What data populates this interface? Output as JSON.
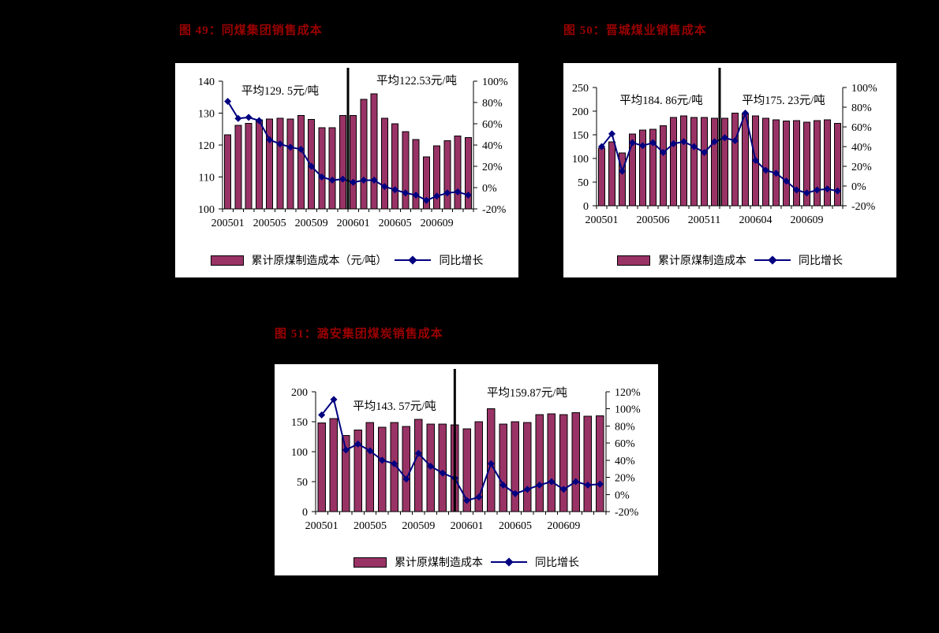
{
  "page": {
    "background": "#000000",
    "panel_background": "#ffffff"
  },
  "colors": {
    "title": "#990000",
    "bar_fill": "#993366",
    "bar_border": "#000000",
    "line": "#000080",
    "axis": "#000000",
    "divider": "#000000"
  },
  "chart_data": [
    {
      "type": "bar",
      "subtype": "bar+line combo",
      "title": "图 49：同煤集团销售成本",
      "categories": [
        "200501",
        "200502",
        "200503",
        "200504",
        "200505",
        "200506",
        "200507",
        "200508",
        "200509",
        "200510",
        "200511",
        "200512",
        "200601",
        "200602",
        "200603",
        "200604",
        "200605",
        "200606",
        "200607",
        "200608",
        "200609",
        "200610",
        "200611",
        "200612"
      ],
      "x_tick_labels": [
        "200501",
        "200505",
        "200509",
        "200601",
        "200605",
        "200609"
      ],
      "series": [
        {
          "name": "累计原煤制造成本（元/吨）",
          "type": "bar",
          "axis": "left",
          "values": [
            123.2,
            126.2,
            126.8,
            127.9,
            128.1,
            128.4,
            128.1,
            129.2,
            128.0,
            125.4,
            125.4,
            129.3,
            129.3,
            134.3,
            136.1,
            128.4,
            126.7,
            124.2,
            121.7,
            116.3,
            119.8,
            121.4,
            122.8,
            122.3
          ]
        },
        {
          "name": "同比增长",
          "type": "line",
          "axis": "right",
          "values_percent": [
            81,
            65,
            66,
            63,
            45,
            41,
            38,
            36,
            20,
            10,
            7,
            8,
            5,
            7,
            7,
            1,
            -2,
            -5,
            -7,
            -12,
            -8,
            -5,
            -4,
            -7
          ]
        }
      ],
      "left_axis": {
        "min": 100,
        "max": 140,
        "step": 10,
        "tick_labels": [
          "100",
          "110",
          "120",
          "130",
          "140"
        ]
      },
      "right_axis": {
        "min": -20,
        "max": 100,
        "step": 20,
        "tick_labels": [
          "-20%",
          "0%",
          "20%",
          "40%",
          "60%",
          "80%",
          "100%"
        ]
      },
      "annotations": [
        {
          "text": "平均129. 5元/吨",
          "period": "2005"
        },
        {
          "text": "平均122.53元/吨",
          "period": "2006"
        }
      ],
      "divider_after": "200512",
      "legend_position": "bottom",
      "grid": false
    },
    {
      "type": "bar",
      "subtype": "bar+line combo",
      "title": "图 50：晋城煤业销售成本",
      "categories": [
        "200501",
        "200502",
        "200503",
        "200504",
        "200505",
        "200506",
        "200507",
        "200508",
        "200509",
        "200510",
        "200511",
        "200512",
        "200601",
        "200602",
        "200603",
        "200604",
        "200605",
        "200606",
        "200607",
        "200608",
        "200609",
        "200610",
        "200611",
        "200612"
      ],
      "x_tick_labels": [
        "200501",
        "200506",
        "200511",
        "200604",
        "200609"
      ],
      "series": [
        {
          "name": "累计原煤制造成本",
          "type": "bar",
          "axis": "left",
          "values": [
            122,
            135,
            112,
            152,
            160,
            162,
            169,
            187,
            190,
            187,
            187,
            185,
            185,
            196,
            194,
            190,
            185,
            182,
            179,
            180,
            177,
            180,
            182,
            174
          ]
        },
        {
          "name": "同比增长",
          "type": "line",
          "axis": "right",
          "values_percent": [
            40,
            53,
            15,
            44,
            41,
            44,
            34,
            43,
            45,
            40,
            34,
            45,
            49,
            46,
            74,
            26,
            16,
            13,
            5,
            -4,
            -7,
            -4,
            -3,
            -5
          ]
        }
      ],
      "left_axis": {
        "min": 0,
        "max": 250,
        "step": 50,
        "tick_labels": [
          "0",
          "50",
          "100",
          "150",
          "200",
          "250"
        ]
      },
      "right_axis": {
        "min": -20,
        "max": 100,
        "step": 20,
        "tick_labels": [
          "-20%",
          "0%",
          "20%",
          "40%",
          "60%",
          "80%",
          "100%"
        ]
      },
      "annotations": [
        {
          "text": "平均184. 86元/吨",
          "period": "2005"
        },
        {
          "text": "平均175. 23元/吨",
          "period": "2006"
        }
      ],
      "divider_after": "200512",
      "legend_position": "bottom",
      "grid": false
    },
    {
      "type": "bar",
      "subtype": "bar+line combo",
      "title": "图 51：潞安集团煤炭销售成本",
      "categories": [
        "200501",
        "200502",
        "200503",
        "200504",
        "200505",
        "200506",
        "200507",
        "200508",
        "200509",
        "200510",
        "200511",
        "200512",
        "200601",
        "200602",
        "200603",
        "200604",
        "200605",
        "200606",
        "200607",
        "200608",
        "200609",
        "200610",
        "200611",
        "200612"
      ],
      "x_tick_labels": [
        "200501",
        "200505",
        "200509",
        "200601",
        "200605",
        "200609"
      ],
      "series": [
        {
          "name": "累计原煤制造成本",
          "type": "bar",
          "axis": "left",
          "values": [
            148,
            155,
            127,
            136,
            149,
            141,
            149,
            142,
            154,
            146,
            146,
            145,
            138,
            150,
            172,
            146,
            150,
            149,
            162,
            163,
            162,
            165,
            159,
            160
          ]
        },
        {
          "name": "同比增长",
          "type": "line",
          "axis": "right",
          "values_percent": [
            93,
            111,
            52,
            59,
            51,
            40,
            36,
            18,
            48,
            33,
            25,
            19,
            -7,
            -3,
            36,
            11,
            1,
            6,
            11,
            15,
            6,
            15,
            11,
            12
          ]
        }
      ],
      "left_axis": {
        "min": 0,
        "max": 200,
        "step": 50,
        "tick_labels": [
          "0",
          "50",
          "100",
          "150",
          "200"
        ]
      },
      "right_axis": {
        "min": -20,
        "max": 120,
        "step": 20,
        "tick_labels": [
          "-20%",
          "0%",
          "20%",
          "40%",
          "60%",
          "80%",
          "100%",
          "120%"
        ]
      },
      "annotations": [
        {
          "text": "平均143. 57元/吨",
          "period": "2005"
        },
        {
          "text": "平均159.87元/吨",
          "period": "2006"
        }
      ],
      "divider_after": "200512",
      "legend_position": "bottom",
      "grid": false
    }
  ]
}
